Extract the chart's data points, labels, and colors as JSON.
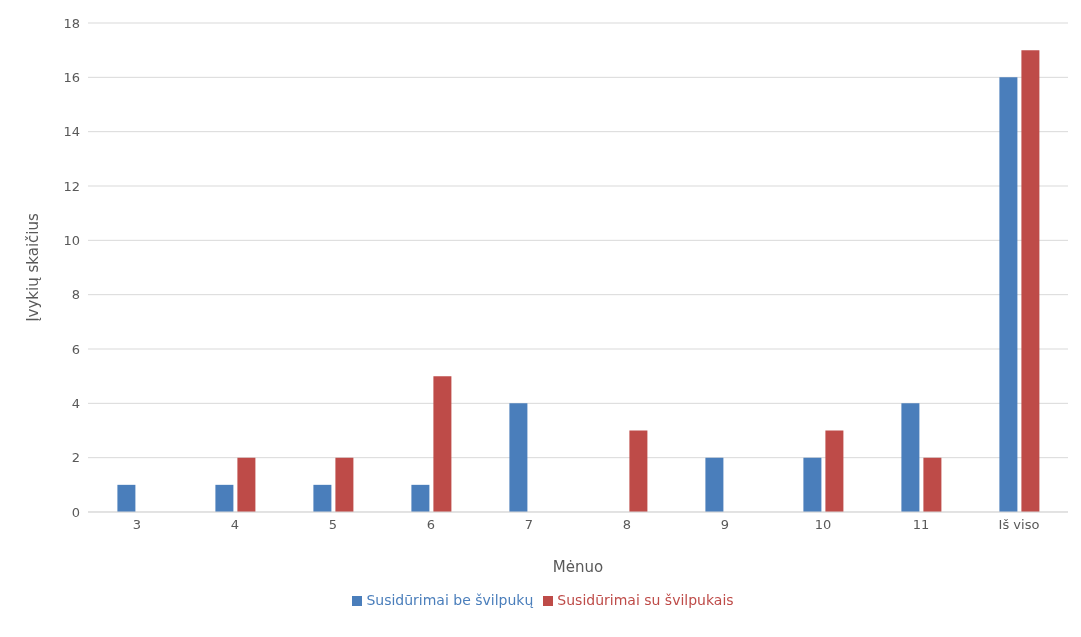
{
  "chart_data": {
    "type": "bar",
    "xlabel": "Mėnuo",
    "ylabel": "Įvykių skaičius",
    "categories": [
      "3",
      "4",
      "5",
      "6",
      "7",
      "8",
      "9",
      "10",
      "11",
      "Iš viso"
    ],
    "series": [
      {
        "name": "Susidūrimai be švilpukų",
        "color": "#4a7ebb",
        "values": [
          1,
          1,
          1,
          1,
          4,
          0,
          2,
          2,
          4,
          16
        ]
      },
      {
        "name": "Susidūrimai su švilpukais",
        "color": "#be4b48",
        "values": [
          0,
          2,
          2,
          5,
          0,
          3,
          0,
          3,
          2,
          17
        ]
      }
    ],
    "ylim": [
      0,
      18
    ],
    "yticks": [
      0,
      2,
      4,
      6,
      8,
      10,
      12,
      14,
      16,
      18
    ],
    "grid": "y",
    "legend": "bottom"
  }
}
